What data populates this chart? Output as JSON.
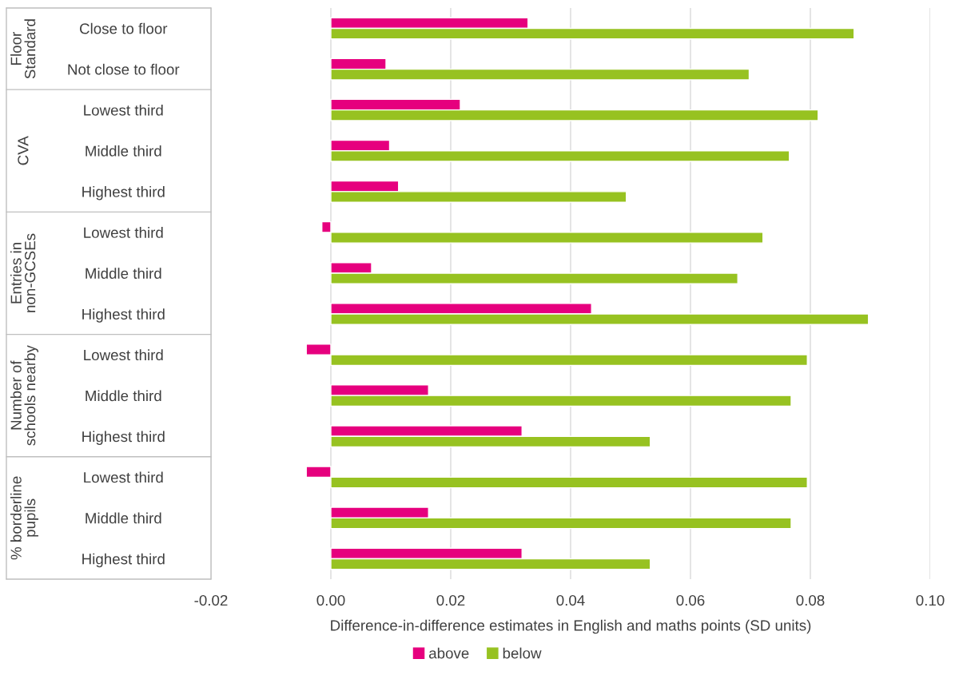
{
  "chart_data": {
    "type": "bar",
    "orientation": "horizontal",
    "categories": [
      "Close to floor",
      "Not close to floor",
      "Lowest third",
      "Middle third",
      "Highest third",
      "Lowest third",
      "Middle third",
      "Highest third",
      "Lowest third",
      "Middle third",
      "Highest third",
      "Lowest third",
      "Middle third",
      "Highest third"
    ],
    "series": [
      {
        "name": "above",
        "color": "#e6007e",
        "values": [
          0.0329,
          0.0092,
          0.0216,
          0.0098,
          0.0113,
          -0.0015,
          0.0068,
          0.0435,
          -0.0041,
          0.0163,
          0.0319,
          -0.0041,
          0.0163,
          0.0319
        ]
      },
      {
        "name": "below",
        "color": "#97c221",
        "values": [
          0.0873,
          0.0698,
          0.0813,
          0.0765,
          0.0493,
          0.0721,
          0.0679,
          0.0897,
          0.0795,
          0.0768,
          0.0533,
          0.0795,
          0.0768,
          0.0533
        ]
      }
    ],
    "xlabel": "Difference-in-difference estimates in English and maths points (SD units)",
    "xlim": [
      -0.02,
      0.1
    ],
    "xticks": [
      {
        "value": -0.02,
        "label": "-0.02"
      },
      {
        "value": 0,
        "label": "0.00"
      },
      {
        "value": 0.02,
        "label": "0.02"
      },
      {
        "value": 0.04,
        "label": "0.04"
      },
      {
        "value": 0.06,
        "label": "0.06"
      },
      {
        "value": 0.08,
        "label": "0.08"
      },
      {
        "value": 0.1,
        "label": "0.10"
      }
    ],
    "annotations": [
      "Floor Standard",
      "CVA",
      "Entries in non-GCSEs",
      "Number of schools nearby",
      "% borderline pupils"
    ],
    "grid": "x",
    "legend": "bottom"
  }
}
